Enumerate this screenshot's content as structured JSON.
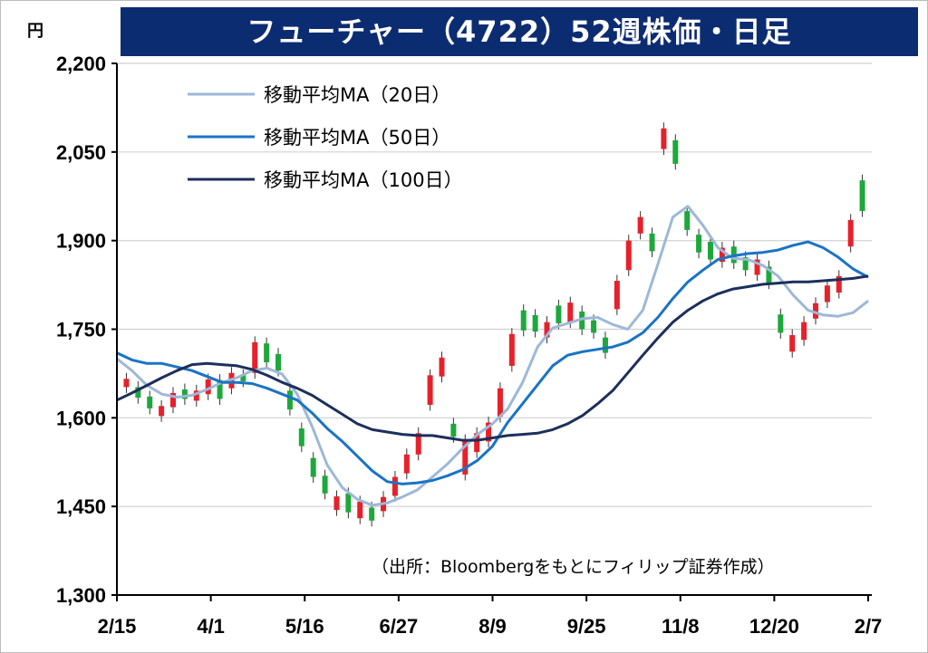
{
  "chart_data": {
    "type": "candlestick",
    "title": "フューチャー（4722）52週株価・日足",
    "unit_label": "円",
    "source_note": "（出所：Bloombergをもとにフィリップ証券作成）",
    "y_ticks": [
      "2,200",
      "2,050",
      "1,900",
      "1,750",
      "1,600",
      "1,450",
      "1,300"
    ],
    "y_tick_values": [
      2200,
      2050,
      1900,
      1750,
      1600,
      1450,
      1300
    ],
    "ylim": [
      1300,
      2200
    ],
    "x_ticks": [
      "2/15",
      "4/1",
      "5/16",
      "6/27",
      "8/9",
      "9/25",
      "11/8",
      "12/20",
      "2/7"
    ],
    "grid": "horizontal",
    "legend_position": "top-left",
    "colors": {
      "up": "#e8202a",
      "down": "#1ea83c",
      "ma20": "#9db8d8",
      "ma50": "#1a73c4",
      "ma100": "#1c2f5c",
      "title_bg": "#0c2c72"
    },
    "series": [
      {
        "name": "移動平均MA（20日）",
        "key": "ma20",
        "values": [
          1700,
          1680,
          1655,
          1640,
          1635,
          1638,
          1648,
          1660,
          1668,
          1680,
          1684,
          1674,
          1640,
          1585,
          1520,
          1482,
          1462,
          1452,
          1456,
          1466,
          1478,
          1500,
          1522,
          1548,
          1572,
          1590,
          1615,
          1660,
          1720,
          1752,
          1760,
          1768,
          1770,
          1758,
          1750,
          1782,
          1860,
          1940,
          1958,
          1926,
          1888,
          1870,
          1868,
          1858,
          1840,
          1808,
          1782,
          1774,
          1772,
          1778,
          1798
        ]
      },
      {
        "name": "移動平均MA（50日）",
        "key": "ma50",
        "values": [
          1710,
          1698,
          1692,
          1692,
          1686,
          1680,
          1670,
          1660,
          1660,
          1658,
          1650,
          1640,
          1630,
          1608,
          1582,
          1560,
          1535,
          1510,
          1492,
          1488,
          1490,
          1494,
          1502,
          1512,
          1528,
          1552,
          1592,
          1624,
          1656,
          1688,
          1706,
          1712,
          1716,
          1720,
          1728,
          1744,
          1770,
          1802,
          1830,
          1850,
          1868,
          1874,
          1878,
          1880,
          1884,
          1892,
          1898,
          1888,
          1872,
          1852,
          1838
        ]
      },
      {
        "name": "移動平均MA（100日）",
        "key": "ma100",
        "values": [
          1630,
          1642,
          1655,
          1668,
          1680,
          1690,
          1692,
          1690,
          1688,
          1682,
          1672,
          1660,
          1650,
          1638,
          1622,
          1606,
          1590,
          1580,
          1576,
          1572,
          1570,
          1570,
          1566,
          1562,
          1562,
          1566,
          1570,
          1572,
          1574,
          1580,
          1590,
          1604,
          1624,
          1646,
          1676,
          1706,
          1735,
          1762,
          1782,
          1798,
          1810,
          1818,
          1822,
          1826,
          1828,
          1830,
          1830,
          1832,
          1834,
          1836,
          1840
        ]
      }
    ],
    "candles": [
      [
        1652,
        1666
      ],
      [
        1634,
        1652
      ],
      [
        1616,
        1636
      ],
      [
        1603,
        1620
      ],
      [
        1618,
        1642
      ],
      [
        1632,
        1648
      ],
      [
        1629,
        1646
      ],
      [
        1640,
        1665
      ],
      [
        1632,
        1664
      ],
      [
        1650,
        1676
      ],
      [
        1662,
        1672
      ],
      [
        1676,
        1728
      ],
      [
        1694,
        1726
      ],
      [
        1680,
        1708
      ],
      [
        1614,
        1646
      ],
      [
        1552,
        1582
      ],
      [
        1500,
        1532
      ],
      [
        1472,
        1502
      ],
      [
        1444,
        1467
      ],
      [
        1440,
        1472
      ],
      [
        1430,
        1458
      ],
      [
        1426,
        1448
      ],
      [
        1442,
        1466
      ],
      [
        1468,
        1500
      ],
      [
        1506,
        1538
      ],
      [
        1538,
        1574
      ],
      [
        1622,
        1672
      ],
      [
        1670,
        1702
      ],
      [
        1568,
        1590
      ],
      [
        1504,
        1562
      ],
      [
        1542,
        1574
      ],
      [
        1560,
        1592
      ],
      [
        1602,
        1650
      ],
      [
        1688,
        1742
      ],
      [
        1748,
        1782
      ],
      [
        1746,
        1774
      ],
      [
        1736,
        1762
      ],
      [
        1760,
        1790
      ],
      [
        1762,
        1795
      ],
      [
        1750,
        1780
      ],
      [
        1744,
        1765
      ],
      [
        1710,
        1736
      ],
      [
        1784,
        1832
      ],
      [
        1850,
        1900
      ],
      [
        1912,
        1940
      ],
      [
        1882,
        1912
      ],
      [
        2055,
        2090
      ],
      [
        2030,
        2070
      ],
      [
        1918,
        1950
      ],
      [
        1880,
        1910
      ],
      [
        1868,
        1898
      ],
      [
        1864,
        1888
      ],
      [
        1862,
        1890
      ],
      [
        1850,
        1872
      ],
      [
        1842,
        1868
      ],
      [
        1828,
        1856
      ],
      [
        1744,
        1775
      ],
      [
        1712,
        1740
      ],
      [
        1732,
        1762
      ],
      [
        1768,
        1794
      ],
      [
        1796,
        1824
      ],
      [
        1812,
        1840
      ],
      [
        1890,
        1935
      ],
      [
        1950,
        2002
      ]
    ],
    "candle_dirs": [
      1,
      0,
      0,
      1,
      1,
      0,
      1,
      1,
      0,
      1,
      0,
      1,
      0,
      0,
      0,
      0,
      0,
      0,
      1,
      0,
      1,
      0,
      1,
      1,
      1,
      1,
      1,
      1,
      0,
      1,
      1,
      1,
      1,
      1,
      0,
      0,
      1,
      0,
      1,
      0,
      0,
      0,
      1,
      1,
      1,
      0,
      1,
      0,
      0,
      0,
      0,
      1,
      0,
      0,
      1,
      0,
      0,
      1,
      1,
      1,
      1,
      1,
      1,
      0
    ]
  }
}
